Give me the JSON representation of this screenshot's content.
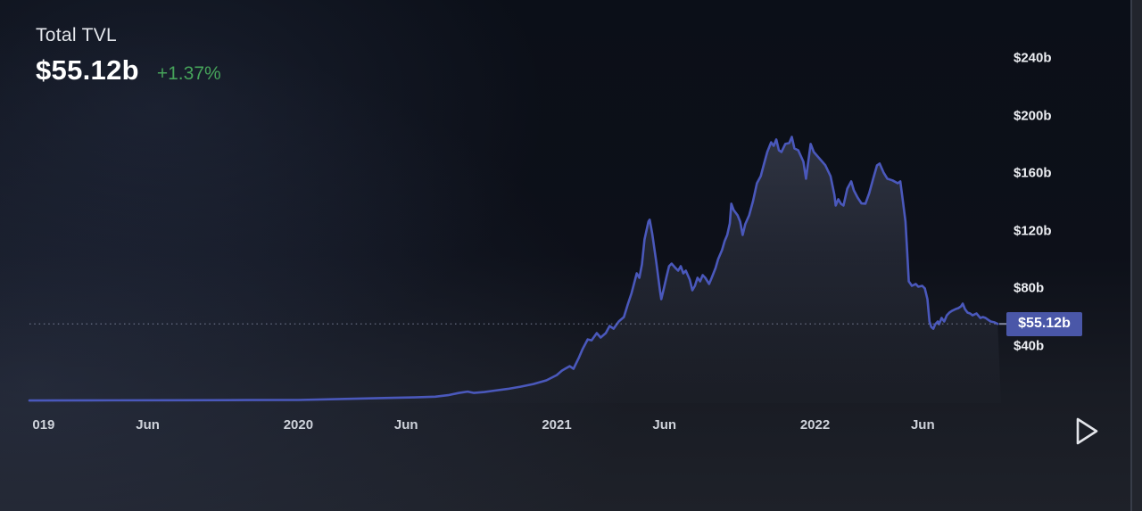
{
  "header": {
    "title": "Total TVL",
    "value": "$55.12b",
    "change": "+1.37%"
  },
  "colors": {
    "background": "#0d1119",
    "line": "#4a58bb",
    "area_fill_top": "#858da8",
    "change_positive": "#46a35a",
    "marker_bg": "#4a57a8",
    "marker_text": "#ffffff",
    "dotted_line": "#8d94ad",
    "axis_text": "#eceef2",
    "play_icon": "#e3e5ea"
  },
  "icons": {
    "replay": "play-triangle-outline"
  },
  "chart_data": {
    "type": "area",
    "title": "Total TVL",
    "series_name": "Total TVL",
    "unit": "billion USD",
    "grid": false,
    "legend": false,
    "xlim": [
      2018.959,
      2022.72
    ],
    "ylim": [
      0,
      260
    ],
    "current": {
      "value": 55.12,
      "label": "$55.12b",
      "change_pct": "+1.37%"
    },
    "y_ticks": [
      {
        "label": "$240b",
        "value": 240
      },
      {
        "label": "$200b",
        "value": 200
      },
      {
        "label": "$160b",
        "value": 160
      },
      {
        "label": "$120b",
        "value": 120
      },
      {
        "label": "$80b",
        "value": 80
      },
      {
        "label": "$40b",
        "value": 40
      }
    ],
    "x_ticks": [
      {
        "label": "019",
        "year": 2019.014
      },
      {
        "label": "Jun",
        "year": 2019.417
      },
      {
        "label": "2020",
        "year": 2020.0
      },
      {
        "label": "Jun",
        "year": 2020.417
      },
      {
        "label": "2021",
        "year": 2021.0
      },
      {
        "label": "Jun",
        "year": 2021.417
      },
      {
        "label": "2022",
        "year": 2022.0
      },
      {
        "label": "Jun",
        "year": 2022.417
      }
    ],
    "points": [
      [
        2018.959,
        1.8
      ],
      [
        2019.2,
        1.9
      ],
      [
        2019.5,
        2.0
      ],
      [
        2019.8,
        2.1
      ],
      [
        2020.0,
        2.2
      ],
      [
        2020.2,
        3.0
      ],
      [
        2020.35,
        3.6
      ],
      [
        2020.45,
        4.0
      ],
      [
        2020.53,
        4.5
      ],
      [
        2020.58,
        5.5
      ],
      [
        2020.62,
        7.0
      ],
      [
        2020.655,
        8.0
      ],
      [
        2020.68,
        7.1
      ],
      [
        2020.72,
        7.7
      ],
      [
        2020.76,
        8.7
      ],
      [
        2020.81,
        9.9
      ],
      [
        2020.86,
        11.4
      ],
      [
        2020.91,
        13.3
      ],
      [
        2020.96,
        15.8
      ],
      [
        2021.0,
        19.5
      ],
      [
        2021.02,
        22.6
      ],
      [
        2021.05,
        25.7
      ],
      [
        2021.065,
        23.9
      ],
      [
        2021.085,
        31.3
      ],
      [
        2021.1,
        37.5
      ],
      [
        2021.12,
        44.3
      ],
      [
        2021.135,
        43.7
      ],
      [
        2021.155,
        48.7
      ],
      [
        2021.17,
        45.6
      ],
      [
        2021.19,
        48.7
      ],
      [
        2021.205,
        53.7
      ],
      [
        2021.22,
        51.8
      ],
      [
        2021.24,
        56.8
      ],
      [
        2021.26,
        59.9
      ],
      [
        2021.275,
        68.6
      ],
      [
        2021.29,
        76.6
      ],
      [
        2021.31,
        90.3
      ],
      [
        2021.32,
        87.2
      ],
      [
        2021.33,
        96.5
      ],
      [
        2021.34,
        113.9
      ],
      [
        2021.355,
        126.3
      ],
      [
        2021.36,
        127.6
      ],
      [
        2021.37,
        117.7
      ],
      [
        2021.385,
        99.0
      ],
      [
        2021.4,
        77.9
      ],
      [
        2021.405,
        72.3
      ],
      [
        2021.415,
        79.8
      ],
      [
        2021.425,
        87.8
      ],
      [
        2021.435,
        95.3
      ],
      [
        2021.445,
        97.1
      ],
      [
        2021.46,
        94.0
      ],
      [
        2021.47,
        92.2
      ],
      [
        2021.48,
        95.3
      ],
      [
        2021.49,
        90.3
      ],
      [
        2021.5,
        92.2
      ],
      [
        2021.515,
        86.0
      ],
      [
        2021.525,
        78.5
      ],
      [
        2021.535,
        81.6
      ],
      [
        2021.545,
        87.2
      ],
      [
        2021.555,
        84.7
      ],
      [
        2021.565,
        89.1
      ],
      [
        2021.575,
        87.2
      ],
      [
        2021.59,
        82.9
      ],
      [
        2021.6,
        87.2
      ],
      [
        2021.615,
        94.0
      ],
      [
        2021.625,
        100.2
      ],
      [
        2021.64,
        106.5
      ],
      [
        2021.65,
        112.7
      ],
      [
        2021.66,
        117.0
      ],
      [
        2021.67,
        125.1
      ],
      [
        2021.676,
        138.8
      ],
      [
        2021.685,
        134.4
      ],
      [
        2021.7,
        130.7
      ],
      [
        2021.71,
        126.3
      ],
      [
        2021.72,
        117.0
      ],
      [
        2021.73,
        124.5
      ],
      [
        2021.745,
        130.7
      ],
      [
        2021.76,
        140.6
      ],
      [
        2021.775,
        153.0
      ],
      [
        2021.79,
        158.0
      ],
      [
        2021.8,
        164.8
      ],
      [
        2021.815,
        174.8
      ],
      [
        2021.83,
        181.5
      ],
      [
        2021.84,
        179.1
      ],
      [
        2021.85,
        183.5
      ],
      [
        2021.86,
        176.0
      ],
      [
        2021.87,
        174.8
      ],
      [
        2021.885,
        180.4
      ],
      [
        2021.9,
        181.0
      ],
      [
        2021.91,
        185.3
      ],
      [
        2021.92,
        177.3
      ],
      [
        2021.935,
        176.0
      ],
      [
        2021.955,
        168.0
      ],
      [
        2021.965,
        156.2
      ],
      [
        2021.975,
        169.8
      ],
      [
        2021.983,
        180.4
      ],
      [
        2021.995,
        174.8
      ],
      [
        2022.01,
        171.7
      ],
      [
        2022.025,
        168.6
      ],
      [
        2022.04,
        165.5
      ],
      [
        2022.06,
        158.0
      ],
      [
        2022.075,
        145.0
      ],
      [
        2022.08,
        137.5
      ],
      [
        2022.09,
        141.9
      ],
      [
        2022.1,
        138.8
      ],
      [
        2022.11,
        137.5
      ],
      [
        2022.125,
        149.3
      ],
      [
        2022.14,
        154.3
      ],
      [
        2022.15,
        148.1
      ],
      [
        2022.165,
        143.0
      ],
      [
        2022.18,
        139.0
      ],
      [
        2022.195,
        138.8
      ],
      [
        2022.21,
        146.2
      ],
      [
        2022.225,
        156.2
      ],
      [
        2022.24,
        165.5
      ],
      [
        2022.25,
        166.7
      ],
      [
        2022.265,
        160.5
      ],
      [
        2022.28,
        156.2
      ],
      [
        2022.3,
        155.0
      ],
      [
        2022.32,
        153.0
      ],
      [
        2022.33,
        154.3
      ],
      [
        2022.34,
        140.6
      ],
      [
        2022.35,
        126.3
      ],
      [
        2022.356,
        107.7
      ],
      [
        2022.363,
        84.7
      ],
      [
        2022.375,
        81.6
      ],
      [
        2022.39,
        82.9
      ],
      [
        2022.4,
        81.0
      ],
      [
        2022.415,
        81.6
      ],
      [
        2022.425,
        79.8
      ],
      [
        2022.435,
        72.3
      ],
      [
        2022.443,
        56.8
      ],
      [
        2022.45,
        53.0
      ],
      [
        2022.458,
        51.8
      ],
      [
        2022.465,
        54.9
      ],
      [
        2022.475,
        56.8
      ],
      [
        2022.48,
        54.9
      ],
      [
        2022.49,
        59.3
      ],
      [
        2022.5,
        56.8
      ],
      [
        2022.51,
        61.1
      ],
      [
        2022.52,
        63.0
      ],
      [
        2022.53,
        64.2
      ],
      [
        2022.545,
        65.5
      ],
      [
        2022.555,
        66.1
      ],
      [
        2022.565,
        67.3
      ],
      [
        2022.572,
        69.2
      ],
      [
        2022.58,
        65.5
      ],
      [
        2022.59,
        63.0
      ],
      [
        2022.6,
        62.4
      ],
      [
        2022.61,
        61.1
      ],
      [
        2022.625,
        62.4
      ],
      [
        2022.64,
        59.3
      ],
      [
        2022.65,
        59.9
      ],
      [
        2022.66,
        59.3
      ],
      [
        2022.67,
        58.0
      ],
      [
        2022.68,
        56.8
      ],
      [
        2022.695,
        56.2
      ],
      [
        2022.707,
        55.12
      ]
    ]
  }
}
